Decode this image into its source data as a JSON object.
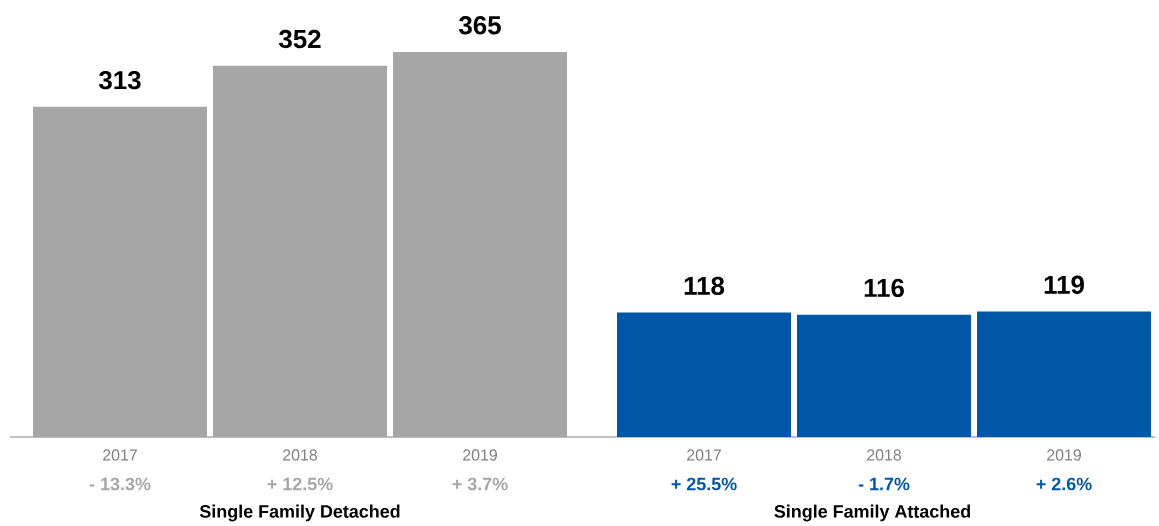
{
  "chart_data": [
    {
      "type": "bar",
      "xlabel": "Single Family Detached",
      "categories": [
        "2017",
        "2018",
        "2019"
      ],
      "series": [
        {
          "color": "#a6a6a6",
          "values": [
            313,
            352,
            365
          ]
        }
      ],
      "data_labels": true,
      "annotations": [
        "- 13.3%",
        "+ 12.5%",
        "+ 3.7%"
      ]
    },
    {
      "type": "bar",
      "xlabel": "Single Family Attached",
      "categories": [
        "2017",
        "2018",
        "2019"
      ],
      "series": [
        {
          "color": "#0057a8",
          "values": [
            118,
            116,
            119
          ]
        }
      ],
      "data_labels": true,
      "annotations": [
        "+ 25.5%",
        "- 1.7%",
        "+ 2.6%"
      ]
    }
  ]
}
